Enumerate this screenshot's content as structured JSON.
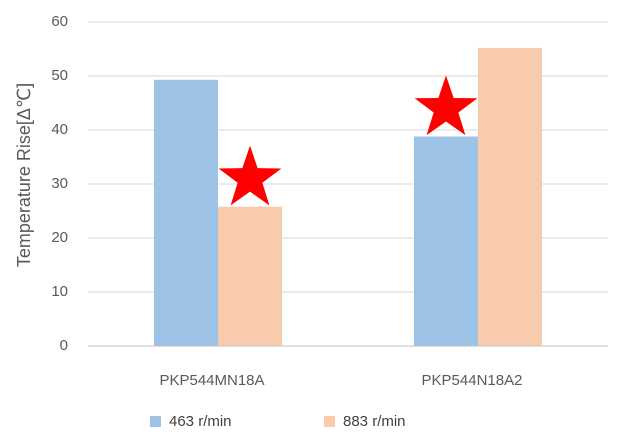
{
  "chart_data": {
    "type": "bar",
    "categories": [
      "PKP544MN18A",
      "PKP544N18A2"
    ],
    "series": [
      {
        "name": "463 r/min",
        "values": [
          49.3,
          38.8
        ],
        "color": "#9DC3E6"
      },
      {
        "name": "883 r/min",
        "values": [
          25.8,
          55.2
        ],
        "color": "#F8CBAD"
      }
    ],
    "ylabel": "Temperature  Rise[Δ℃]",
    "ylim": [
      0,
      60
    ],
    "yticks": [
      "0",
      "10",
      "20",
      "30",
      "40",
      "50",
      "60"
    ],
    "grid": true,
    "legend_position": "bottom",
    "annotations": [
      {
        "type": "star",
        "category": "PKP544MN18A",
        "series": "883 r/min",
        "color": "#FF0000"
      },
      {
        "type": "star",
        "category": "PKP544N18A2",
        "series": "463 r/min",
        "color": "#FF0000"
      }
    ],
    "grid_color": "#D9D9D9",
    "axis_color": "#BFBFBF"
  }
}
